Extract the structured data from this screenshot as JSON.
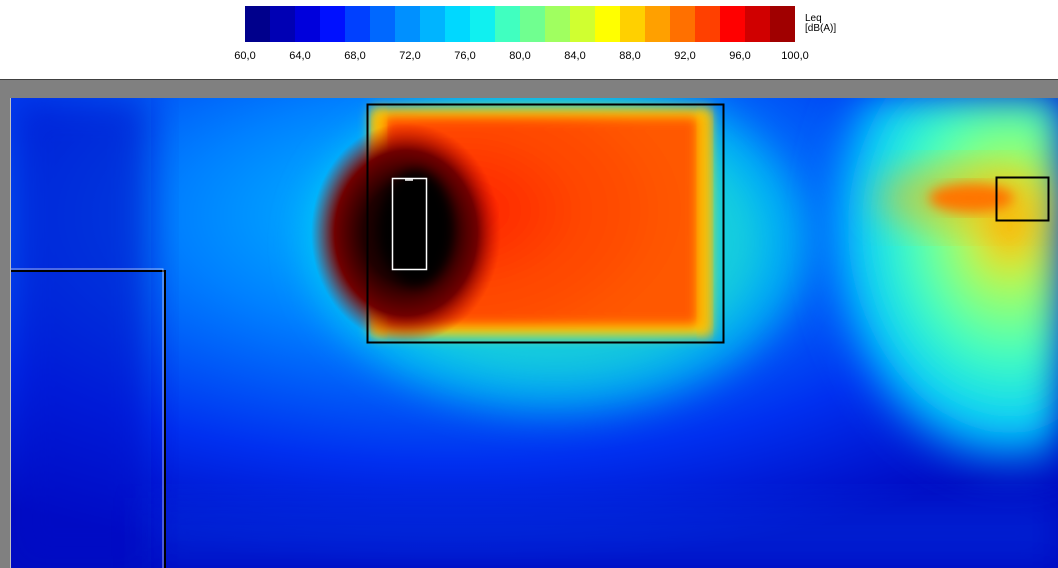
{
  "legend": {
    "title": "Leq",
    "unit": "[dB(A)]",
    "tick_labels": [
      "60,0",
      "64,0",
      "68,0",
      "72,0",
      "76,0",
      "80,0",
      "84,0",
      "88,0",
      "92,0",
      "96,0",
      "100,0"
    ],
    "min": 60.0,
    "max": 100.0,
    "step": 2.0,
    "colors": [
      "#00008c",
      "#0000b4",
      "#0000dc",
      "#0010ff",
      "#0040ff",
      "#0068ff",
      "#0090ff",
      "#00b4ff",
      "#00d8ff",
      "#10f0f0",
      "#40ffc0",
      "#70ff90",
      "#a0ff60",
      "#d0ff30",
      "#ffff00",
      "#ffd000",
      "#ffa000",
      "#ff7000",
      "#ff4000",
      "#ff0000",
      "#d00000",
      "#a00000"
    ]
  },
  "map": {
    "objects": [
      "building-large",
      "building-left",
      "source-right",
      "source-indoor"
    ]
  }
}
